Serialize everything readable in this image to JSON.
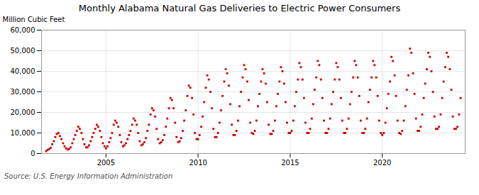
{
  "chart_data": {
    "type": "scatter",
    "title": "Monthly Alabama Natural Gas Deliveries to Electric Power Consumers",
    "ylabel": "Million Cubic Feet",
    "source": "Source: U.S. Energy Information Administration",
    "color": "#cc0000",
    "marker": "square",
    "grid": true,
    "xlim": [
      2001.5,
      2024.5
    ],
    "xticks": [
      2005,
      2010,
      2015,
      2020
    ],
    "ylim": [
      0,
      60000
    ],
    "yticks": [
      0,
      {
        "value": 10000,
        "label": "10,000"
      },
      {
        "value": 20000,
        "label": "20,000"
      },
      {
        "value": 30000,
        "label": "30,000"
      },
      {
        "value": 40000,
        "label": "40,000"
      },
      {
        "value": 50000,
        "label": "50,000"
      },
      {
        "value": 60000,
        "label": "60,000"
      }
    ],
    "x": [
      2001.75,
      2001.83,
      2001.92,
      2002.0,
      2002.08,
      2002.17,
      2002.25,
      2002.33,
      2002.42,
      2002.5,
      2002.58,
      2002.67,
      2002.75,
      2002.83,
      2002.92,
      2003.0,
      2003.08,
      2003.17,
      2003.25,
      2003.33,
      2003.42,
      2003.5,
      2003.58,
      2003.67,
      2003.75,
      2003.83,
      2003.92,
      2004.0,
      2004.08,
      2004.17,
      2004.25,
      2004.33,
      2004.42,
      2004.5,
      2004.58,
      2004.67,
      2004.75,
      2004.83,
      2004.92,
      2005.0,
      2005.08,
      2005.17,
      2005.25,
      2005.33,
      2005.42,
      2005.5,
      2005.58,
      2005.67,
      2005.75,
      2005.83,
      2005.92,
      2006.0,
      2006.08,
      2006.17,
      2006.25,
      2006.33,
      2006.42,
      2006.5,
      2006.58,
      2006.67,
      2006.75,
      2006.83,
      2006.92,
      2007.0,
      2007.08,
      2007.17,
      2007.25,
      2007.33,
      2007.42,
      2007.5,
      2007.58,
      2007.67,
      2007.75,
      2007.83,
      2007.92,
      2008.0,
      2008.08,
      2008.17,
      2008.25,
      2008.33,
      2008.42,
      2008.5,
      2008.58,
      2008.67,
      2008.75,
      2008.83,
      2008.92,
      2009.0,
      2009.08,
      2009.17,
      2009.25,
      2009.33,
      2009.42,
      2009.5,
      2009.58,
      2009.67,
      2009.75,
      2009.83,
      2009.92,
      2010.0,
      2010.08,
      2010.17,
      2010.25,
      2010.33,
      2010.42,
      2010.5,
      2010.58,
      2010.67,
      2010.75,
      2010.83,
      2010.92,
      2011.0,
      2011.08,
      2011.17,
      2011.25,
      2011.33,
      2011.42,
      2011.5,
      2011.58,
      2011.67,
      2011.75,
      2011.83,
      2011.92,
      2012.0,
      2012.08,
      2012.17,
      2012.25,
      2012.33,
      2012.42,
      2012.5,
      2012.58,
      2012.67,
      2012.75,
      2012.83,
      2012.92,
      2013.0,
      2013.08,
      2013.17,
      2013.25,
      2013.33,
      2013.42,
      2013.5,
      2013.58,
      2013.67,
      2013.75,
      2013.83,
      2013.92,
      2014.0,
      2014.08,
      2014.17,
      2014.25,
      2014.33,
      2014.42,
      2014.5,
      2014.58,
      2014.67,
      2014.75,
      2014.83,
      2014.92,
      2015.0,
      2015.08,
      2015.17,
      2015.25,
      2015.33,
      2015.42,
      2015.5,
      2015.58,
      2015.67,
      2015.75,
      2015.83,
      2015.92,
      2016.0,
      2016.08,
      2016.17,
      2016.25,
      2016.33,
      2016.42,
      2016.5,
      2016.58,
      2016.67,
      2016.75,
      2016.83,
      2016.92,
      2017.0,
      2017.08,
      2017.17,
      2017.25,
      2017.33,
      2017.42,
      2017.5,
      2017.58,
      2017.67,
      2017.75,
      2017.83,
      2017.92,
      2018.0,
      2018.08,
      2018.17,
      2018.25,
      2018.33,
      2018.42,
      2018.5,
      2018.58,
      2018.67,
      2018.75,
      2018.83,
      2018.92,
      2019.0,
      2019.08,
      2019.17,
      2019.25,
      2019.33,
      2019.42,
      2019.5,
      2019.58,
      2019.67,
      2019.75,
      2019.83,
      2019.92,
      2020.0,
      2020.08,
      2020.17,
      2020.25,
      2020.33,
      2020.42,
      2020.5,
      2020.58,
      2020.67,
      2020.75,
      2020.83,
      2020.92,
      2021.0,
      2021.08,
      2021.17,
      2021.25,
      2021.33,
      2021.42,
      2021.5,
      2021.58,
      2021.67,
      2021.75,
      2021.83,
      2021.92,
      2022.0,
      2022.08,
      2022.17,
      2022.25,
      2022.33,
      2022.42,
      2022.5,
      2022.58,
      2022.67,
      2022.75,
      2022.83,
      2022.92,
      2023.0,
      2023.08,
      2023.17,
      2023.25,
      2023.33,
      2023.42,
      2023.5,
      2023.58,
      2023.67,
      2023.75,
      2023.83,
      2023.92,
      2024.0,
      2024.08,
      2024.17,
      2024.25
    ],
    "values": [
      1200,
      1800,
      2200,
      2800,
      4500,
      6000,
      8000,
      9500,
      10000,
      8500,
      7000,
      5000,
      3500,
      2500,
      2000,
      2200,
      3000,
      5000,
      7000,
      9000,
      11000,
      13000,
      12000,
      10000,
      7000,
      4500,
      3000,
      3000,
      4000,
      6000,
      8000,
      10000,
      12000,
      14000,
      13000,
      11000,
      8000,
      5000,
      3500,
      2500,
      3500,
      5500,
      7500,
      10000,
      14000,
      16000,
      15000,
      13000,
      9000,
      5500,
      3500,
      4000,
      5000,
      7000,
      9000,
      11000,
      14000,
      17000,
      16000,
      14000,
      10000,
      6000,
      4000,
      4500,
      5500,
      7500,
      11000,
      14000,
      19000,
      22000,
      21000,
      18000,
      12000,
      7000,
      5000,
      5500,
      6500,
      9000,
      13000,
      17000,
      22000,
      27000,
      26000,
      22000,
      15000,
      8000,
      5500,
      6000,
      7500,
      11000,
      16000,
      21000,
      28000,
      33000,
      32000,
      27000,
      19000,
      10000,
      7000,
      7000,
      9000,
      13000,
      18000,
      25000,
      32000,
      38000,
      36000,
      30000,
      22000,
      12000,
      8000,
      8000,
      10000,
      15000,
      21000,
      28000,
      35000,
      41000,
      39000,
      33000,
      24000,
      14000,
      9000,
      9000,
      11000,
      16000,
      23000,
      30000,
      37000,
      43000,
      41000,
      35000,
      26000,
      15000,
      10000,
      9500,
      11000,
      16000,
      23000,
      29000,
      35000,
      41000,
      39000,
      34000,
      25000,
      14000,
      9500,
      9500,
      11000,
      16000,
      23000,
      29000,
      35000,
      42000,
      40000,
      34000,
      25000,
      15000,
      10000,
      10000,
      11000,
      16000,
      23000,
      30000,
      36000,
      44000,
      42000,
      36000,
      27000,
      15000,
      10000,
      10000,
      12000,
      17000,
      24000,
      31000,
      37000,
      45000,
      43000,
      36000,
      27000,
      16000,
      10000,
      10000,
      12000,
      17000,
      24000,
      30000,
      36000,
      44000,
      42000,
      36000,
      27000,
      16000,
      10000,
      10000,
      12000,
      17000,
      24000,
      30000,
      37000,
      45000,
      43000,
      37000,
      28000,
      16000,
      10000,
      10000,
      12000,
      17000,
      25000,
      31000,
      37000,
      45000,
      43000,
      37000,
      28000,
      16000,
      10000,
      9000,
      10000,
      15000,
      22000,
      29000,
      35000,
      47000,
      45000,
      38000,
      28000,
      16000,
      10000,
      9500,
      11000,
      16000,
      23000,
      31000,
      38000,
      51000,
      49000,
      39000,
      29000,
      17000,
      11000,
      11000,
      13000,
      19000,
      27000,
      34000,
      41000,
      49000,
      47000,
      40000,
      30000,
      18000,
      12000,
      12000,
      13000,
      19000,
      27000,
      35000,
      42000,
      49000,
      47000,
      41000,
      31000,
      18000,
      12000,
      12000,
      13000,
      19000,
      27000
    ]
  }
}
